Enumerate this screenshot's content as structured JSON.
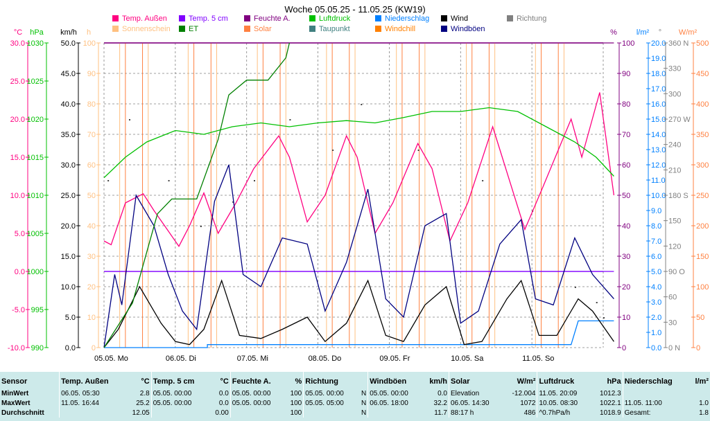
{
  "chart_data": {
    "type": "line",
    "title": "Woche 05.05.25 - 11.05.25 (KW19)",
    "x_labels": [
      "05.05.  Mo",
      "06.05.  Di",
      "07.05.  Mi",
      "08.05.  Do",
      "09.05.  Fr",
      "10.05.  Sa",
      "11.05.  So"
    ],
    "axes": [
      {
        "unit": "°C",
        "color": "#ff0080",
        "min": -10,
        "max": 30,
        "ticks": [
          "30.0",
          "25.0",
          "20.0",
          "15.0",
          "10.0",
          "5.0",
          "0.0",
          "-5.0",
          "-10.0"
        ]
      },
      {
        "unit": "hPa",
        "color": "#00c000",
        "min": 990,
        "max": 1030,
        "ticks": [
          "1030",
          "1025",
          "1020",
          "1015",
          "1010",
          "1005",
          "1000",
          "995",
          "990"
        ]
      },
      {
        "unit": "km/h",
        "color": "#000000",
        "min": 0,
        "max": 50,
        "ticks": [
          "50.0",
          "45.0",
          "40.0",
          "35.0",
          "30.0",
          "25.0",
          "20.0",
          "15.0",
          "10.0",
          "5.0",
          "0.0"
        ]
      },
      {
        "unit": "h",
        "color": "#ffc080",
        "min": 0,
        "max": 100,
        "ticks": [
          "100",
          "90",
          "80",
          "70",
          "60",
          "50",
          "40",
          "30",
          "20",
          "10",
          "0"
        ]
      },
      {
        "unit": "%",
        "color": "#800080",
        "min": 0,
        "max": 100,
        "ticks": [
          "100",
          "90",
          "80",
          "70",
          "60",
          "50",
          "40",
          "30",
          "20",
          "10",
          "0"
        ]
      },
      {
        "unit": "l/m²",
        "color": "#0080ff",
        "min": 0,
        "max": 20.5,
        "ticks": [
          "20.0",
          "19.0",
          "18.0",
          "17.0",
          "16.0",
          "15.0",
          "14.0",
          "13.0",
          "12.0",
          "11.0",
          "10.0",
          "9.0",
          "8.0",
          "7.0",
          "6.0",
          "5.0",
          "4.0",
          "3.0",
          "2.0",
          "1.0",
          "0.0"
        ]
      },
      {
        "unit": "°",
        "color": "#808080",
        "min": 0,
        "max": 360,
        "ticks": [
          "360 N",
          "330",
          "300",
          "270 W",
          "240",
          "210",
          "180 S",
          "150",
          "120",
          "90  O",
          "60",
          "30",
          "0 N"
        ]
      },
      {
        "unit": "W/m²",
        "color": "#ff8040",
        "min": 0,
        "max": 500,
        "ticks": [
          "500",
          "450",
          "400",
          "350",
          "300",
          "250",
          "200",
          "150",
          "100",
          "50",
          "0"
        ]
      }
    ],
    "legend": [
      {
        "label": "Temp. Außen",
        "color": "#ff0080"
      },
      {
        "label": "Temp. 5 cm",
        "color": "#8000ff"
      },
      {
        "label": "Feuchte A.",
        "color": "#800080"
      },
      {
        "label": "Luftdruck",
        "color": "#00c000"
      },
      {
        "label": "Niederschlag",
        "color": "#0080ff"
      },
      {
        "label": "Wind",
        "color": "#000000"
      },
      {
        "label": "Richtung",
        "color": "#808080"
      },
      {
        "label": "Sonnenschein",
        "color": "#ffc080"
      },
      {
        "label": "ET",
        "color": "#008000"
      },
      {
        "label": "Solar",
        "color": "#ff8040"
      },
      {
        "label": "Taupunkt",
        "color": "#408080"
      },
      {
        "label": "Windchill",
        "color": "#ff8000"
      },
      {
        "label": "Windböen",
        "color": "#000080"
      }
    ],
    "series": [
      {
        "name": "Temp. Außen",
        "axis": "°C",
        "points": [
          [
            0,
            4
          ],
          [
            0.1,
            3.5
          ],
          [
            0.3,
            9
          ],
          [
            0.55,
            10.2
          ],
          [
            0.7,
            8
          ],
          [
            0.85,
            6
          ],
          [
            1.05,
            3.3
          ],
          [
            1.2,
            6
          ],
          [
            1.4,
            10.3
          ],
          [
            1.6,
            5
          ],
          [
            1.85,
            9
          ],
          [
            2.1,
            13.5
          ],
          [
            2.45,
            17.8
          ],
          [
            2.6,
            15
          ],
          [
            2.85,
            6.5
          ],
          [
            3.1,
            10
          ],
          [
            3.4,
            17.8
          ],
          [
            3.55,
            15
          ],
          [
            3.8,
            5
          ],
          [
            4.05,
            9
          ],
          [
            4.4,
            16.8
          ],
          [
            4.6,
            13.5
          ],
          [
            4.85,
            4
          ],
          [
            5.1,
            9
          ],
          [
            5.45,
            19
          ],
          [
            5.55,
            16
          ],
          [
            5.9,
            5.5
          ],
          [
            6.15,
            11
          ],
          [
            6.55,
            20
          ],
          [
            6.7,
            15
          ],
          [
            6.95,
            23.5
          ],
          [
            7.15,
            10
          ]
        ]
      },
      {
        "name": "Temp. 5 cm",
        "axis": "°C",
        "points": [
          [
            0,
            0
          ],
          [
            7.15,
            0
          ]
        ]
      },
      {
        "name": "Feuchte A.",
        "axis": "%",
        "points": [
          [
            0,
            100
          ],
          [
            7.15,
            100
          ]
        ]
      },
      {
        "name": "Luftdruck",
        "axis": "hPa",
        "points": [
          [
            0,
            1012.3
          ],
          [
            0.3,
            1015
          ],
          [
            0.6,
            1017
          ],
          [
            1.0,
            1018.5
          ],
          [
            1.4,
            1018
          ],
          [
            1.8,
            1019
          ],
          [
            2.2,
            1019.5
          ],
          [
            2.6,
            1019
          ],
          [
            3.0,
            1019.5
          ],
          [
            3.4,
            1019.8
          ],
          [
            3.8,
            1019.5
          ],
          [
            4.2,
            1020.2
          ],
          [
            4.6,
            1021
          ],
          [
            5.0,
            1021
          ],
          [
            5.4,
            1021.5
          ],
          [
            5.8,
            1021
          ],
          [
            6.2,
            1019
          ],
          [
            6.6,
            1017
          ],
          [
            6.9,
            1015
          ],
          [
            7.15,
            1012.5
          ]
        ]
      },
      {
        "name": "Niederschlag",
        "axis": "l/m²",
        "points": [
          [
            0,
            0
          ],
          [
            1.45,
            0
          ],
          [
            1.45,
            0.2
          ],
          [
            6.55,
            0.2
          ],
          [
            6.65,
            1.8
          ],
          [
            7.15,
            1.8
          ]
        ]
      },
      {
        "name": "Wind",
        "axis": "km/h",
        "points": [
          [
            0,
            0
          ],
          [
            0.2,
            3
          ],
          [
            0.5,
            10
          ],
          [
            0.8,
            4
          ],
          [
            1.0,
            1
          ],
          [
            1.2,
            0.5
          ],
          [
            1.4,
            3
          ],
          [
            1.65,
            11
          ],
          [
            1.9,
            2
          ],
          [
            2.2,
            1.5
          ],
          [
            2.5,
            3
          ],
          [
            2.85,
            5
          ],
          [
            3.1,
            1
          ],
          [
            3.4,
            4
          ],
          [
            3.7,
            11
          ],
          [
            3.95,
            2
          ],
          [
            4.2,
            1
          ],
          [
            4.5,
            7
          ],
          [
            4.8,
            10
          ],
          [
            5.05,
            0.5
          ],
          [
            5.3,
            1
          ],
          [
            5.65,
            8
          ],
          [
            5.85,
            11
          ],
          [
            6.1,
            2
          ],
          [
            6.35,
            2
          ],
          [
            6.65,
            8
          ],
          [
            6.85,
            6
          ],
          [
            7.15,
            1
          ]
        ]
      },
      {
        "name": "Windböen",
        "axis": "km/h",
        "points": [
          [
            0,
            0
          ],
          [
            0.15,
            12
          ],
          [
            0.25,
            7
          ],
          [
            0.45,
            25
          ],
          [
            0.7,
            20
          ],
          [
            0.9,
            12
          ],
          [
            1.1,
            6
          ],
          [
            1.3,
            3
          ],
          [
            1.55,
            24
          ],
          [
            1.75,
            30
          ],
          [
            1.95,
            12
          ],
          [
            2.2,
            10
          ],
          [
            2.5,
            18
          ],
          [
            2.85,
            17
          ],
          [
            3.1,
            6
          ],
          [
            3.4,
            14
          ],
          [
            3.7,
            26
          ],
          [
            3.95,
            8
          ],
          [
            4.2,
            5
          ],
          [
            4.5,
            20
          ],
          [
            4.8,
            22
          ],
          [
            5.0,
            4
          ],
          [
            5.25,
            6
          ],
          [
            5.55,
            17
          ],
          [
            5.85,
            21
          ],
          [
            6.05,
            8
          ],
          [
            6.3,
            7
          ],
          [
            6.6,
            18
          ],
          [
            6.85,
            12
          ],
          [
            7.15,
            8
          ]
        ]
      },
      {
        "name": "ET",
        "axis": "l/m²",
        "points": [
          [
            0,
            0
          ],
          [
            0.4,
            3
          ],
          [
            0.75,
            9
          ],
          [
            0.95,
            10
          ],
          [
            1.3,
            10
          ],
          [
            1.6,
            14
          ],
          [
            1.75,
            17
          ],
          [
            2.0,
            18
          ],
          [
            2.3,
            18
          ],
          [
            2.55,
            19.5
          ],
          [
            2.6,
            21
          ]
        ]
      }
    ],
    "sun_days": [
      0.42,
      1.38,
      2.35,
      3.32,
      4.3,
      5.28,
      6.25
    ],
    "richtung_dots": [
      [
        0.05,
        55
      ],
      [
        0.35,
        75
      ],
      [
        0.9,
        55
      ],
      [
        1.35,
        40
      ],
      [
        1.8,
        48
      ],
      [
        2.1,
        55
      ],
      [
        2.6,
        75
      ],
      [
        3.2,
        65
      ],
      [
        3.6,
        80
      ],
      [
        4.4,
        65
      ],
      [
        5.3,
        55
      ],
      [
        6.0,
        45
      ],
      [
        6.6,
        20
      ],
      [
        6.9,
        15
      ],
      [
        7.0,
        10
      ]
    ],
    "reference_line": {
      "axis": "°C",
      "value": 0
    }
  },
  "stats": {
    "headers": [
      {
        "name": "Sensor",
        "unit": ""
      },
      {
        "name": "Temp. Außen",
        "unit": "°C"
      },
      {
        "name": "Temp. 5 cm",
        "unit": "°C"
      },
      {
        "name": "Feuchte A.",
        "unit": "%"
      },
      {
        "name": "Richtung",
        "unit": ""
      },
      {
        "name": "Windböen",
        "unit": "km/h"
      },
      {
        "name": "Solar",
        "unit": "W/m²"
      },
      {
        "name": "Luftdruck",
        "unit": "hPa"
      },
      {
        "name": "Niederschlag",
        "unit": "l/m²"
      }
    ],
    "rows": [
      {
        "label": "MinWert",
        "cells": [
          [
            "06.05.  05:30",
            "2.8"
          ],
          [
            "05.05.  00:00",
            "0.0"
          ],
          [
            "05.05.  00:00",
            "100"
          ],
          [
            "05.05.  00:00",
            "N"
          ],
          [
            "05.05.  00:00",
            "0.0"
          ],
          [
            "Elevation",
            "-12.004"
          ],
          [
            "11.05.  20:09",
            "1012.3"
          ],
          [
            "",
            ""
          ]
        ]
      },
      {
        "label": "MaxWert",
        "cells": [
          [
            "11.05.  16:44",
            "25.2"
          ],
          [
            "05.05.  00:00",
            "0.0"
          ],
          [
            "05.05.  00:00",
            "100"
          ],
          [
            "05.05.  05:00",
            "N"
          ],
          [
            "06.05.  18:00",
            "32.2"
          ],
          [
            "06.05.  14:30",
            "1072"
          ],
          [
            "10.05.  08:30",
            "1022.1"
          ],
          [
            "11.05.  11:00",
            "1.0"
          ]
        ]
      },
      {
        "label": "Durchschnitt",
        "cells": [
          [
            "",
            "12.05"
          ],
          [
            "",
            "0.00"
          ],
          [
            "",
            "100"
          ],
          [
            "",
            "N"
          ],
          [
            "",
            "11.7"
          ],
          [
            "88:17 h",
            "486"
          ],
          [
            "^0.7hPa/h",
            "1018.9"
          ],
          [
            "Gesamt:",
            "1.8"
          ]
        ]
      }
    ]
  }
}
